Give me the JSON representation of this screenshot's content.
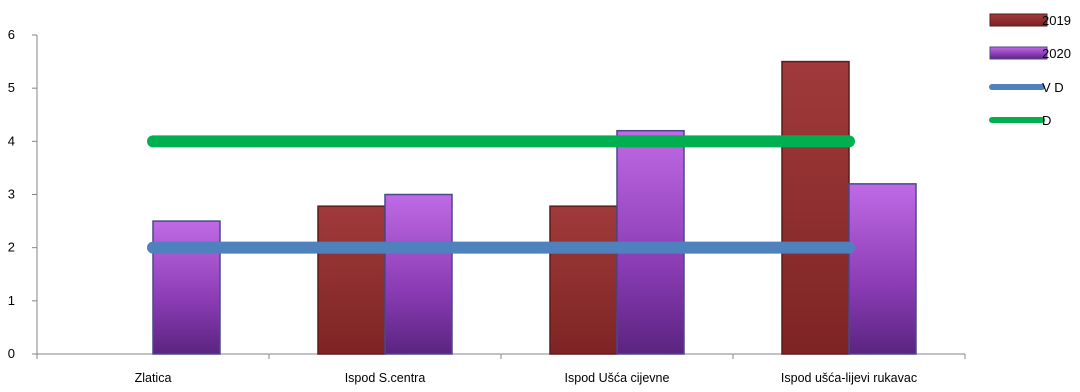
{
  "chart_data": {
    "type": "bar",
    "categories": [
      "Zlatica",
      "Ispod S.centra",
      "Ispod Ušća cijevne",
      "Ispod ušća-lijevi rukavac"
    ],
    "series": [
      {
        "name": "2019",
        "type": "bar",
        "values": [
          0,
          2.78,
          2.78,
          5.5
        ],
        "color": "#8b2a2a"
      },
      {
        "name": "2020",
        "type": "bar",
        "values": [
          2.5,
          3.0,
          4.2,
          3.2
        ],
        "color": "#9b45c8"
      },
      {
        "name": "V D",
        "type": "line",
        "values": [
          2,
          2,
          2,
          2
        ],
        "color": "#4f81bd"
      },
      {
        "name": "D",
        "type": "line",
        "values": [
          4,
          4,
          4,
          4
        ],
        "color": "#00b050"
      }
    ],
    "ylim": [
      0,
      6
    ],
    "yticks": [
      "0",
      "1",
      "2",
      "3",
      "4",
      "5",
      "6"
    ],
    "grid": false,
    "legend_position": "top-right"
  }
}
